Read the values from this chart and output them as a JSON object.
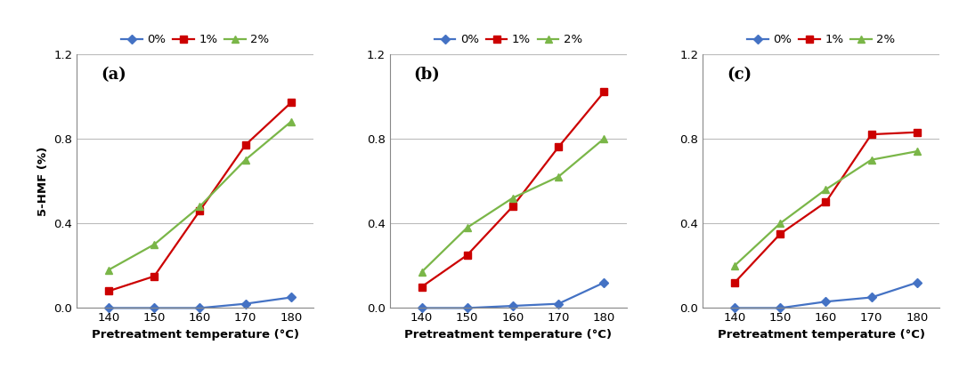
{
  "x": [
    140,
    150,
    160,
    170,
    180
  ],
  "panels": [
    {
      "label": "(a)",
      "series": {
        "0%": [
          0.0,
          0.0,
          0.0,
          0.02,
          0.05
        ],
        "1%": [
          0.08,
          0.15,
          0.46,
          0.77,
          0.97
        ],
        "2%": [
          0.18,
          0.3,
          0.48,
          0.7,
          0.88
        ]
      }
    },
    {
      "label": "(b)",
      "series": {
        "0%": [
          0.0,
          0.0,
          0.01,
          0.02,
          0.12
        ],
        "1%": [
          0.1,
          0.25,
          0.48,
          0.76,
          1.02
        ],
        "2%": [
          0.17,
          0.38,
          0.52,
          0.62,
          0.8
        ]
      }
    },
    {
      "label": "(c)",
      "series": {
        "0%": [
          0.0,
          0.0,
          0.03,
          0.05,
          0.12
        ],
        "1%": [
          0.12,
          0.35,
          0.5,
          0.82,
          0.83
        ],
        "2%": [
          0.2,
          0.4,
          0.56,
          0.7,
          0.74
        ]
      }
    }
  ],
  "colors": {
    "0%": "#4472C4",
    "1%": "#CC0000",
    "2%": "#7AB648"
  },
  "markers": {
    "0%": "D",
    "1%": "s",
    "2%": "^"
  },
  "ylabel": "5-HMF (%)",
  "xlabel": "Pretreatment temperature (°C)",
  "ylim": [
    0.0,
    1.2
  ],
  "yticks": [
    0.0,
    0.4,
    0.8,
    1.2
  ],
  "xticks": [
    140,
    150,
    160,
    170,
    180
  ],
  "legend_labels": [
    "0%",
    "1%",
    "2%"
  ],
  "background_color": "#ffffff",
  "grid_color": "#bbbbbb"
}
